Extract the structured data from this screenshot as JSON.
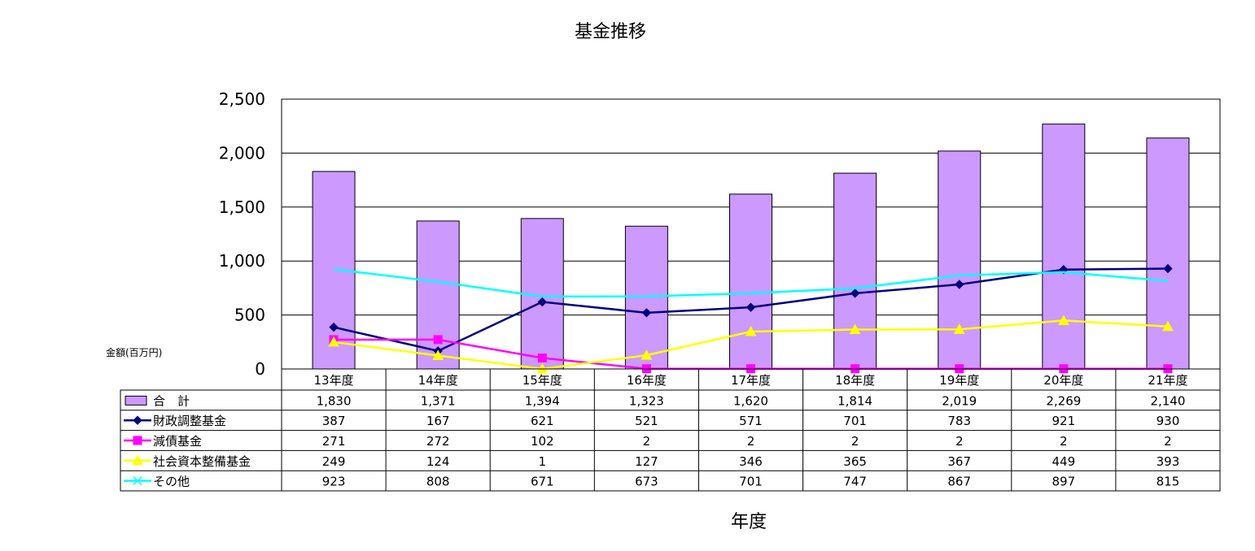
{
  "chart_data": {
    "type": "bar",
    "title": "基金推移",
    "xlabel": "年度",
    "ylabel": "金額(百万円)",
    "ylim": [
      0,
      2500
    ],
    "yticks": [
      "0",
      "500",
      "1,000",
      "1,500",
      "2,000",
      "2,500"
    ],
    "grid": true,
    "legend": "data-table",
    "categories": [
      "13年度",
      "14年度",
      "15年度",
      "16年度",
      "17年度",
      "18年度",
      "19年度",
      "20年度",
      "21年度"
    ],
    "series": [
      {
        "name": "合　計",
        "kind": "bar",
        "color": "#cc99ff",
        "values": [
          1830,
          1371,
          1394,
          1323,
          1620,
          1814,
          2019,
          2269,
          2140
        ],
        "labels": [
          "1,830",
          "1,371",
          "1,394",
          "1,323",
          "1,620",
          "1,814",
          "2,019",
          "2,269",
          "2,140"
        ]
      },
      {
        "name": "財政調整基金",
        "kind": "line",
        "marker": "diamond",
        "color": "#000080",
        "values": [
          387,
          167,
          621,
          521,
          571,
          701,
          783,
          921,
          930
        ],
        "labels": [
          "387",
          "167",
          "621",
          "521",
          "571",
          "701",
          "783",
          "921",
          "930"
        ]
      },
      {
        "name": "減債基金",
        "kind": "line",
        "marker": "square",
        "color": "#ff00ff",
        "values": [
          271,
          272,
          102,
          2,
          2,
          2,
          2,
          2,
          2
        ],
        "labels": [
          "271",
          "272",
          "102",
          "2",
          "2",
          "2",
          "2",
          "2",
          "2"
        ]
      },
      {
        "name": "社会資本整備基金",
        "kind": "line",
        "marker": "triangle",
        "color": "#ffff00",
        "values": [
          249,
          124,
          1,
          127,
          346,
          365,
          367,
          449,
          393
        ],
        "labels": [
          "249",
          "124",
          "1",
          "127",
          "346",
          "365",
          "367",
          "449",
          "393"
        ]
      },
      {
        "name": "その他",
        "kind": "line",
        "marker": "x",
        "color": "#00ffff",
        "values": [
          923,
          808,
          671,
          673,
          701,
          747,
          867,
          897,
          815
        ],
        "labels": [
          "923",
          "808",
          "671",
          "673",
          "701",
          "747",
          "867",
          "897",
          "815"
        ]
      }
    ]
  }
}
